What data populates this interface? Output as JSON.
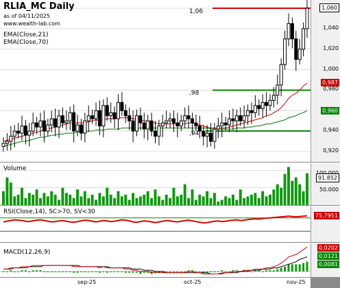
{
  "header": {
    "title": "RLIA_MC Daily",
    "asof": "as of 04/11/2025",
    "site": "www.wealth-lab.com",
    "ema21": "EMA(Close,21)",
    "ema70": "EMA(Close,70)"
  },
  "price_pane": {
    "ticks": [
      "1,060",
      "1,040",
      "1,020",
      "1,000",
      "0,980",
      "0,960",
      "0,940",
      "0,920"
    ],
    "level_labels": [
      "1,06",
      ",98",
      ",94"
    ],
    "badges": {
      "last": "1,060",
      "ema21": "0,987",
      "ema70": "0,960"
    },
    "colors": {
      "ema21": "#cc0000",
      "ema70": "#007700",
      "resistance": "#dd0000",
      "support": "#008800"
    }
  },
  "volume_pane": {
    "label": "Volume",
    "ticks": [
      "100.000",
      "50.000"
    ],
    "badge": "91.852"
  },
  "rsi_pane": {
    "label": "RSI(Close,14), SC>70, SV<30",
    "badge": "75,7951"
  },
  "macd_pane": {
    "label": "MACD(12,26,9)",
    "badges": [
      "0,0202",
      "0,0121",
      "0,0081"
    ]
  },
  "x_axis": {
    "labels": [
      "sep-25",
      "oct-25",
      "nov-25"
    ]
  },
  "chart_data": [
    {
      "type": "candlestick",
      "title": "RLIA_MC Daily",
      "ylim": [
        0.912,
        1.064
      ],
      "close": [
        0.928,
        0.93,
        0.935,
        0.94,
        0.938,
        0.945,
        0.936,
        0.94,
        0.948,
        0.944,
        0.95,
        0.94,
        0.946,
        0.952,
        0.944,
        0.955,
        0.948,
        0.95,
        0.958,
        0.94,
        0.946,
        0.938,
        0.95,
        0.955,
        0.952,
        0.96,
        0.945,
        0.965,
        0.955,
        0.958,
        0.952,
        0.968,
        0.96,
        0.955,
        0.95,
        0.94,
        0.955,
        0.948,
        0.942,
        0.95,
        0.94,
        0.935,
        0.945,
        0.948,
        0.95,
        0.952,
        0.948,
        0.945,
        0.95,
        0.955,
        0.952,
        0.948,
        0.945,
        0.94,
        0.935,
        0.938,
        0.93,
        0.942,
        0.945,
        0.948,
        0.946,
        0.952,
        0.95,
        0.955,
        0.95,
        0.955,
        0.96,
        0.958,
        0.965,
        0.962,
        0.968,
        0.965,
        0.97,
        0.975,
        0.985,
        1.005,
        1.03,
        1.045,
        1.03,
        1.01,
        1.02,
        1.04,
        1.06
      ],
      "ema21": [
        0.93,
        0.931,
        0.932,
        0.933,
        0.934,
        0.935,
        0.936,
        0.937,
        0.938,
        0.939,
        0.94,
        0.941,
        0.942,
        0.943,
        0.944,
        0.945,
        0.946,
        0.947,
        0.948,
        0.948,
        0.948,
        0.948,
        0.948,
        0.949,
        0.95,
        0.951,
        0.95,
        0.951,
        0.952,
        0.952,
        0.952,
        0.953,
        0.953,
        0.953,
        0.953,
        0.952,
        0.952,
        0.951,
        0.95,
        0.95,
        0.949,
        0.948,
        0.947,
        0.947,
        0.947,
        0.947,
        0.947,
        0.947,
        0.947,
        0.947,
        0.948,
        0.948,
        0.947,
        0.946,
        0.945,
        0.944,
        0.943,
        0.943,
        0.943,
        0.943,
        0.943,
        0.944,
        0.945,
        0.946,
        0.947,
        0.948,
        0.949,
        0.95,
        0.951,
        0.952,
        0.953,
        0.955,
        0.956,
        0.958,
        0.96,
        0.963,
        0.967,
        0.972,
        0.975,
        0.977,
        0.98,
        0.984,
        0.987
      ],
      "ema70": [
        0.925,
        0.926,
        0.927,
        0.928,
        0.929,
        0.93,
        0.93,
        0.931,
        0.932,
        0.933,
        0.934,
        0.934,
        0.935,
        0.936,
        0.936,
        0.937,
        0.937,
        0.938,
        0.938,
        0.938,
        0.939,
        0.939,
        0.939,
        0.94,
        0.94,
        0.941,
        0.941,
        0.941,
        0.942,
        0.942,
        0.942,
        0.942,
        0.943,
        0.943,
        0.943,
        0.943,
        0.943,
        0.943,
        0.943,
        0.943,
        0.943,
        0.943,
        0.943,
        0.943,
        0.943,
        0.943,
        0.943,
        0.943,
        0.943,
        0.943,
        0.943,
        0.943,
        0.943,
        0.943,
        0.943,
        0.943,
        0.942,
        0.942,
        0.942,
        0.942,
        0.942,
        0.942,
        0.942,
        0.943,
        0.943,
        0.943,
        0.944,
        0.944,
        0.945,
        0.945,
        0.946,
        0.947,
        0.947,
        0.948,
        0.949,
        0.95,
        0.951,
        0.953,
        0.954,
        0.955,
        0.957,
        0.958,
        0.96
      ],
      "resistance": 1.06,
      "support": [
        0.98,
        0.94
      ]
    },
    {
      "type": "bar",
      "title": "Volume",
      "values": [
        40,
        80,
        65,
        25,
        30,
        50,
        20,
        35,
        30,
        45,
        20,
        35,
        25,
        40,
        30,
        15,
        50,
        35,
        30,
        20,
        45,
        25,
        40,
        20,
        30,
        15,
        35,
        25,
        50,
        30,
        20,
        40,
        25,
        30,
        15,
        35,
        20,
        25,
        30,
        40,
        20,
        45,
        25,
        15,
        30,
        20,
        50,
        25,
        30,
        60,
        20,
        45,
        15,
        30,
        25,
        40,
        20,
        35,
        10,
        15,
        25,
        20,
        30,
        15,
        45,
        20,
        25,
        30,
        35,
        20,
        40,
        25,
        30,
        45,
        60,
        50,
        90,
        110,
        70,
        80,
        60,
        40,
        92
      ],
      "ylim": [
        0,
        115
      ]
    },
    {
      "type": "line",
      "title": "RSI(Close,14), SC>70, SV<30",
      "ylim": [
        0,
        100
      ],
      "levels": [
        70,
        30
      ],
      "values": [
        58,
        60,
        62,
        64,
        63,
        62,
        60,
        59,
        61,
        63,
        64,
        62,
        60,
        58,
        59,
        61,
        62,
        60,
        58,
        57,
        59,
        61,
        63,
        62,
        60,
        58,
        60,
        62,
        61,
        59,
        60,
        62,
        64,
        63,
        61,
        58,
        57,
        59,
        61,
        60,
        58,
        56,
        58,
        60,
        62,
        61,
        59,
        58,
        60,
        62,
        63,
        61,
        59,
        57,
        55,
        56,
        58,
        60,
        61,
        59,
        60,
        62,
        63,
        64,
        62,
        63,
        65,
        66,
        67,
        66,
        68,
        69,
        70,
        71,
        72,
        73,
        74,
        75,
        74,
        73,
        74,
        75,
        76
      ]
    },
    {
      "type": "line",
      "title": "MACD(12,26,9)",
      "macd": [
        0.002,
        0.002,
        0.003,
        0.003,
        0.003,
        0.004,
        0.004,
        0.004,
        0.005,
        0.005,
        0.005,
        0.005,
        0.005,
        0.005,
        0.005,
        0.005,
        0.005,
        0.005,
        0.005,
        0.004,
        0.004,
        0.004,
        0.004,
        0.004,
        0.004,
        0.004,
        0.003,
        0.004,
        0.003,
        0.003,
        0.003,
        0.003,
        0.003,
        0.002,
        0.002,
        0.001,
        0.001,
        0.0,
        0.0,
        0.0,
        -0.001,
        -0.001,
        -0.001,
        -0.001,
        -0.001,
        -0.001,
        -0.001,
        -0.001,
        -0.001,
        -0.001,
        0.0,
        0.0,
        -0.001,
        -0.001,
        -0.002,
        -0.002,
        -0.002,
        -0.002,
        -0.002,
        -0.001,
        -0.001,
        -0.001,
        0.0,
        0.0,
        0.0,
        0.001,
        0.001,
        0.001,
        0.002,
        0.002,
        0.002,
        0.003,
        0.003,
        0.004,
        0.005,
        0.007,
        0.009,
        0.012,
        0.013,
        0.014,
        0.016,
        0.018,
        0.0202
      ],
      "signal": [
        0.002,
        0.002,
        0.002,
        0.003,
        0.003,
        0.003,
        0.003,
        0.004,
        0.004,
        0.004,
        0.004,
        0.005,
        0.005,
        0.005,
        0.005,
        0.005,
        0.005,
        0.005,
        0.005,
        0.005,
        0.005,
        0.004,
        0.004,
        0.004,
        0.004,
        0.004,
        0.004,
        0.004,
        0.004,
        0.003,
        0.003,
        0.003,
        0.003,
        0.003,
        0.003,
        0.002,
        0.002,
        0.002,
        0.001,
        0.001,
        0.001,
        0.0,
        0.0,
        0.0,
        -0.001,
        -0.001,
        -0.001,
        -0.001,
        -0.001,
        -0.001,
        -0.001,
        -0.001,
        -0.001,
        -0.001,
        -0.001,
        -0.001,
        -0.002,
        -0.002,
        -0.002,
        -0.002,
        -0.001,
        -0.001,
        -0.001,
        -0.001,
        0.0,
        0.0,
        0.0,
        0.001,
        0.001,
        0.001,
        0.002,
        0.002,
        0.002,
        0.003,
        0.003,
        0.004,
        0.005,
        0.006,
        0.007,
        0.008,
        0.01,
        0.011,
        0.0121
      ],
      "histogram_last": 0.0081,
      "ylim": [
        -0.004,
        0.022
      ]
    }
  ]
}
